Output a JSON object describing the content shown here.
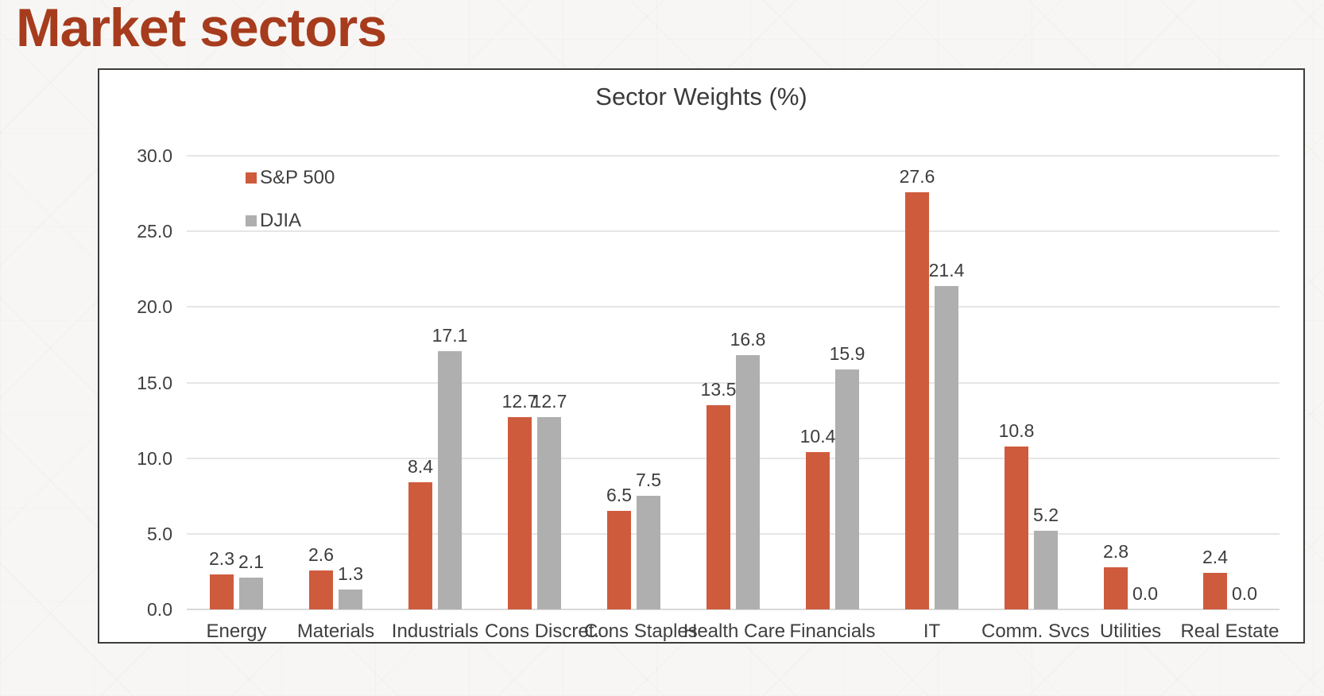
{
  "page": {
    "title": "Market sectors",
    "title_color": "#a63c1d"
  },
  "chart_data": {
    "type": "bar",
    "title": "Sector Weights (%)",
    "categories": [
      "Energy",
      "Materials",
      "Industrials",
      "Cons Discret.",
      "Cons Staples",
      "Health Care",
      "Financials",
      "IT",
      "Comm. Svcs",
      "Utilities",
      "Real Estate"
    ],
    "series": [
      {
        "name": "S&P 500",
        "color": "#cf5b3d",
        "values": [
          2.3,
          2.6,
          8.4,
          12.7,
          6.5,
          13.5,
          10.4,
          27.6,
          10.8,
          2.8,
          2.4
        ]
      },
      {
        "name": "DJIA",
        "color": "#afafaf",
        "values": [
          2.1,
          1.3,
          17.1,
          12.7,
          7.5,
          16.8,
          15.9,
          21.4,
          5.2,
          0.0,
          0.0
        ]
      }
    ],
    "ylim": [
      0,
      30
    ],
    "ytick_step": 5,
    "ytick_labels": [
      "0.0",
      "5.0",
      "10.0",
      "15.0",
      "20.0",
      "25.0",
      "30.0"
    ],
    "grid": true,
    "legend_position": "top-left-inside",
    "data_labels": true,
    "label_decimals": 1,
    "gridline_color": "#e6e6e6",
    "axis_line_color": "#d9d9d9",
    "text_color": "#3f3f3f"
  }
}
